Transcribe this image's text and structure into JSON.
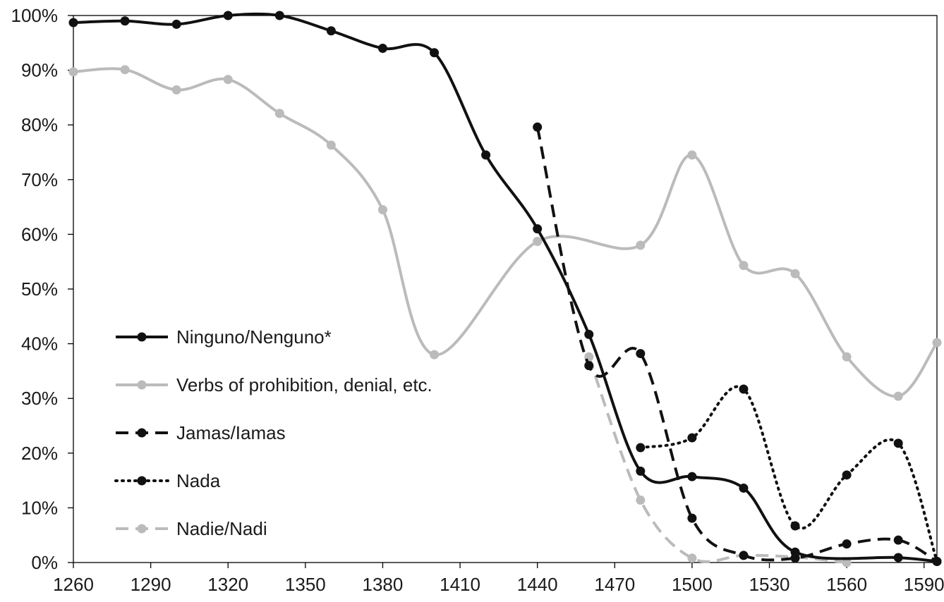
{
  "chart_data": {
    "type": "line",
    "title": "",
    "xlabel": "",
    "ylabel": "",
    "xlim": [
      1260,
      1595
    ],
    "ylim": [
      0,
      100
    ],
    "x_ticks": [
      1260,
      1290,
      1320,
      1350,
      1380,
      1410,
      1440,
      1470,
      1500,
      1530,
      1560,
      1590
    ],
    "y_ticks": [
      0,
      10,
      20,
      30,
      40,
      50,
      60,
      70,
      80,
      90,
      100
    ],
    "y_tick_suffix": "%",
    "grid": false,
    "legend_position": "lower-left",
    "series": [
      {
        "name": "Ninguno/Nenguno*",
        "color": "#111111",
        "dash": "solid",
        "x": [
          1260,
          1280,
          1300,
          1320,
          1340,
          1360,
          1380,
          1400,
          1420,
          1440,
          1460,
          1480,
          1500,
          1520,
          1540,
          1580,
          1595
        ],
        "y": [
          98.7,
          99.0,
          98.4,
          100.0,
          100.0,
          97.2,
          94.0,
          93.2,
          74.5,
          61.0,
          41.7,
          16.7,
          15.7,
          13.6,
          1.9,
          0.9,
          0.2
        ]
      },
      {
        "name": "Verbs of prohibition, denial, etc.",
        "color": "#bbbbbb",
        "dash": "solid",
        "x": [
          1260,
          1280,
          1300,
          1320,
          1340,
          1360,
          1380,
          1400,
          1440,
          1480,
          1500,
          1520,
          1540,
          1560,
          1580,
          1595
        ],
        "y": [
          89.7,
          90.1,
          86.4,
          88.3,
          82.1,
          76.3,
          64.5,
          38.0,
          58.7,
          58.0,
          74.5,
          54.3,
          52.8,
          37.6,
          30.4,
          40.2
        ]
      },
      {
        "name": "Jamas/Iamas",
        "color": "#111111",
        "dash": "dashed",
        "x": [
          1440,
          1460,
          1480,
          1500,
          1520,
          1540,
          1560,
          1580,
          1595
        ],
        "y": [
          79.6,
          36.0,
          38.2,
          8.1,
          1.3,
          0.8,
          3.4,
          4.1,
          0.2
        ]
      },
      {
        "name": "Nada",
        "color": "#111111",
        "dash": "dotted",
        "x": [
          1480,
          1500,
          1520,
          1540,
          1560,
          1580,
          1595
        ],
        "y": [
          21.0,
          22.8,
          31.7,
          6.7,
          16.0,
          21.8,
          0.2
        ]
      },
      {
        "name": "Nadie/Nadi",
        "color": "#bbbbbb",
        "dash": "dashed",
        "x": [
          1460,
          1480,
          1500,
          1520,
          1540,
          1560
        ],
        "y": [
          37.6,
          11.4,
          0.8,
          1.3,
          1.0,
          0.0
        ]
      }
    ]
  }
}
